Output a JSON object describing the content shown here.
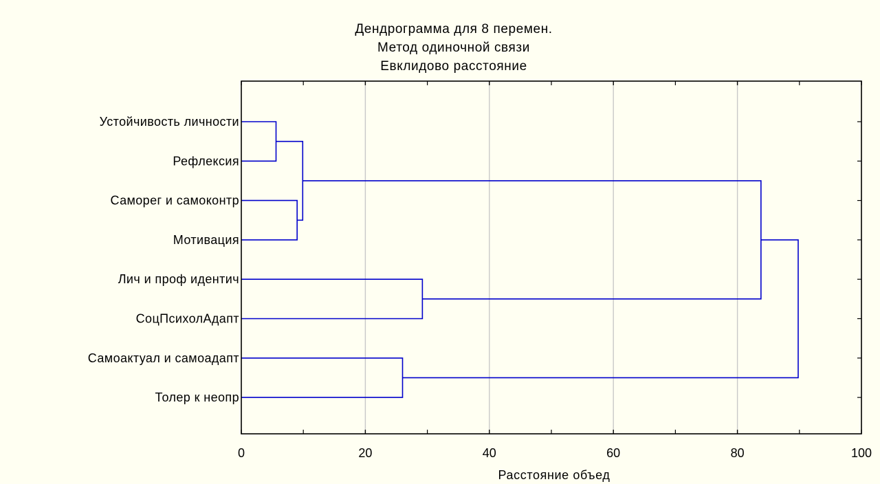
{
  "chart_data": {
    "type": "dendrogram",
    "orientation": "horizontal",
    "title_lines": [
      "Дендрограмма для 8 перемен.",
      "Метод одиночной связи",
      "Евклидово расстояние"
    ],
    "xlabel": "Расстояние объед",
    "xlim": [
      0,
      100
    ],
    "x_ticks": [
      0,
      20,
      40,
      60,
      80,
      100
    ],
    "x_tick_labels": [
      "0",
      "20",
      "40",
      "60",
      "80",
      "100"
    ],
    "grid_vertical": true,
    "leaves": [
      "Устойчивость личности",
      "Рефлексия",
      "Самoрег и самоконтр",
      "Мотивация",
      "Лич и проф идентич",
      "СоцПсихолАдапт",
      "Самоактуал и самоадапт",
      "Толер к неопр"
    ],
    "merges": [
      {
        "left": "leaf:0",
        "right": "leaf:1",
        "height": 5.6
      },
      {
        "left": "leaf:2",
        "right": "leaf:3",
        "height": 9.0
      },
      {
        "left": "node:0",
        "right": "node:1",
        "height": 9.9
      },
      {
        "left": "leaf:6",
        "right": "leaf:7",
        "height": 26.0
      },
      {
        "left": "leaf:4",
        "right": "leaf:5",
        "height": 29.2
      },
      {
        "left": "node:2",
        "right": "node:4",
        "height": 83.8
      },
      {
        "left": "node:5",
        "right": "node:3",
        "height": 89.8
      }
    ],
    "line_color": "#0000cc",
    "grid_color": "#c8c8c8",
    "background_color": "#fffff2"
  }
}
